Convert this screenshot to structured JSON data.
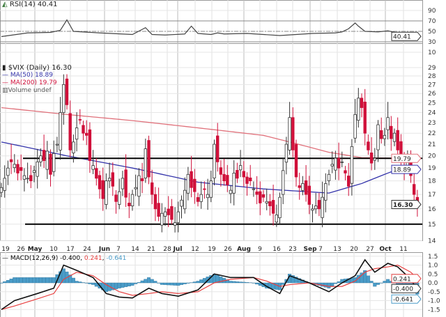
{
  "rsi_panel": {
    "label": "RSI(14)",
    "value": "40.41",
    "current_tag": "40.41"
  },
  "price_panel": {
    "title": "$VIX (Daily)",
    "value": "16.30",
    "ma50_label": "MA(50)",
    "ma50_value": "18.89",
    "ma200_label": "MA(200)",
    "ma200_value": "19.79",
    "volume_label": "Volume undef",
    "tag_price": "16.30",
    "tag_ma50": "18.89",
    "tag_ma200": "19.79"
  },
  "macd_panel": {
    "label": "MACD(12,26,9)",
    "macd": "-0.400",
    "signal": "0.241",
    "hist": "-0.641",
    "tag_macd": "-0.400",
    "tag_signal": "0.241",
    "tag_hist": "-0.641"
  },
  "colors": {
    "up": "#ffffff",
    "down": "#d0103a",
    "ma50": "#3333aa",
    "ma200": "#e0707a",
    "macd": "#111111",
    "signal": "#e84040",
    "hist": "#4a9cc8"
  },
  "chart_data": [
    {
      "type": "line",
      "name": "RSI(14)",
      "yticks": [
        90,
        70,
        50,
        30,
        10
      ],
      "ylim": [
        0,
        100
      ],
      "reference_lines": [
        70,
        50,
        30
      ],
      "day_index": [
        0,
        8,
        15,
        18,
        20,
        22,
        30,
        40,
        44,
        46,
        50,
        56,
        58,
        60,
        64,
        66,
        68,
        75,
        85,
        95,
        102,
        104,
        106,
        108,
        109,
        111,
        115,
        118,
        121,
        124,
        127
      ],
      "values": [
        40,
        47,
        48,
        52,
        72,
        50,
        47,
        44,
        57,
        44,
        43,
        45,
        60,
        46,
        44,
        47,
        45,
        46,
        42,
        46,
        47,
        49,
        55,
        66,
        60,
        50,
        49,
        51,
        47,
        48,
        40.41
      ]
    },
    {
      "type": "candlestick",
      "title": "$VIX (Daily)",
      "scale": "log",
      "ylim": [
        14,
        29
      ],
      "yticks": [
        29,
        28,
        27,
        26,
        25,
        24,
        23,
        22,
        21,
        20,
        19,
        18,
        17,
        16,
        15,
        14
      ],
      "xticks": [
        "19",
        "26",
        "May",
        "10",
        "17",
        "24",
        "Jun",
        "7",
        "14",
        "21",
        "28",
        "Jul",
        "12",
        "19",
        "26",
        "Aug",
        "9",
        "16",
        "23",
        "Sep",
        "7",
        "13",
        "20",
        "27",
        "Oct",
        "11"
      ],
      "close": [
        17.5,
        18.2,
        19.0,
        19.5,
        19.3,
        18.6,
        18.8,
        18.4,
        18.2,
        18.0,
        18.8,
        19.5,
        20.0,
        19.6,
        20.4,
        18.5,
        20.2,
        21.0,
        24.0,
        27.0,
        24.8,
        20.5,
        21.2,
        22.5,
        23.3,
        22.0,
        21.8,
        19.6,
        19.2,
        18.2,
        17.4,
        16.7,
        18.0,
        18.2,
        17.6,
        16.5,
        17.2,
        18.2,
        16.8,
        16.2,
        17.0,
        17.5,
        18.4,
        18.0,
        20.6,
        18.3,
        17.0,
        16.0,
        15.5,
        15.7,
        15.8,
        15.6,
        15.3,
        15.1,
        15.8,
        16.6,
        17.3,
        18.5,
        17.5,
        17.2,
        16.5,
        17.0,
        17.4,
        17.0,
        18.0,
        21.0,
        19.5,
        18.5,
        18.0,
        17.7,
        17.3,
        18.6,
        18.2,
        19.2,
        18.3,
        17.8,
        18.0,
        17.4,
        17.0,
        16.4,
        16.8,
        16.5,
        16.2,
        15.7,
        15.6,
        16.8,
        18.8,
        21.0,
        23.5,
        20.5,
        18.3,
        17.5,
        17.8,
        17.0,
        16.3,
        16.0,
        16.2,
        16.0,
        16.8,
        17.8,
        18.5,
        19.3,
        19.8,
        19.0,
        19.5,
        18.6,
        17.6,
        20.8,
        23.8,
        25.5,
        24.5,
        22.0,
        20.5,
        19.4,
        19.8,
        22.8,
        21.5,
        21.8,
        23.5,
        21.5,
        22.0,
        20.5,
        19.5,
        19.0,
        19.6,
        18.4,
        17.0,
        16.3
      ],
      "ma50": {
        "day_index": [
          0,
          20,
          40,
          60,
          80,
          100,
          110,
          120,
          127
        ],
        "values": [
          21.2,
          20.0,
          19.0,
          17.9,
          17.4,
          17.1,
          17.8,
          18.8,
          18.89
        ]
      },
      "ma200": {
        "day_index": [
          0,
          20,
          40,
          60,
          80,
          100,
          110,
          120,
          127
        ],
        "values": [
          24.5,
          23.8,
          23.2,
          22.5,
          21.8,
          20.3,
          19.85,
          19.8,
          19.79
        ]
      },
      "horizontal_lines": [
        19.79,
        15.0
      ]
    },
    {
      "type": "line",
      "name": "MACD(12,26,9)",
      "ylim": [
        -1.6,
        1.6
      ],
      "yticks": [
        1.5,
        1.0,
        0.5,
        0.0,
        -0.5,
        -1.0,
        -1.5
      ],
      "day_index": [
        0,
        4,
        11,
        16,
        19,
        23,
        28,
        32,
        36,
        40,
        45,
        49,
        54,
        60,
        65,
        70,
        77,
        81,
        85,
        88,
        94,
        100,
        104,
        108,
        111,
        114,
        118,
        121,
        125,
        127
      ],
      "macd": [
        -1.5,
        -1.0,
        -0.6,
        -0.3,
        1.0,
        0.7,
        0.3,
        -0.6,
        -0.8,
        -0.85,
        -0.3,
        -0.6,
        -0.75,
        -0.4,
        0.5,
        0.3,
        0.3,
        -0.2,
        -0.6,
        0.4,
        0.0,
        -0.5,
        0.0,
        0.4,
        1.3,
        0.6,
        1.1,
        0.9,
        0.2,
        -0.4
      ],
      "signal": [
        -1.5,
        -1.3,
        -0.9,
        -0.6,
        0.2,
        0.6,
        0.4,
        -0.1,
        -0.5,
        -0.7,
        -0.6,
        -0.5,
        -0.6,
        -0.5,
        0.0,
        0.2,
        0.3,
        0.1,
        -0.2,
        -0.1,
        0.0,
        -0.2,
        -0.2,
        0.1,
        0.6,
        0.8,
        0.9,
        1.0,
        0.6,
        0.241
      ]
    }
  ]
}
